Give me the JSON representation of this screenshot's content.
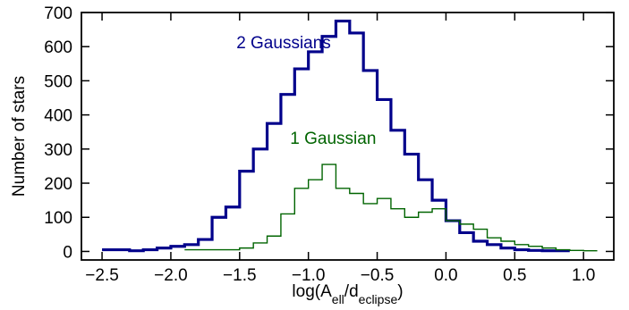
{
  "chart_data": {
    "type": "line",
    "title": "",
    "xlabel": "log(A_ell/d_eclipse)",
    "ylabel": "Number of stars",
    "xlim": [
      -2.65,
      1.22
    ],
    "ylim": [
      -25,
      700
    ],
    "x_ticks": [
      -2.5,
      -2.0,
      -1.5,
      -1.0,
      -0.5,
      0.0,
      0.5,
      1.0
    ],
    "x_tick_labels": [
      "−2.5",
      "−2.0",
      "−1.5",
      "−1.0",
      "−0.5",
      "0.0",
      "0.5",
      "1.0"
    ],
    "y_ticks": [
      0,
      100,
      200,
      300,
      400,
      500,
      600,
      700
    ],
    "y_tick_labels": [
      "0",
      "100",
      "200",
      "300",
      "400",
      "500",
      "600",
      "700"
    ],
    "grid": false,
    "bin_width": 0.1,
    "series": [
      {
        "name": "2 Gaussians",
        "color": "#00008b",
        "bin_edges": [
          -2.5,
          -2.4,
          -2.3,
          -2.2,
          -2.1,
          -2.0,
          -1.9,
          -1.8,
          -1.7,
          -1.6,
          -1.5,
          -1.4,
          -1.3,
          -1.2,
          -1.1,
          -1.0,
          -0.9,
          -0.8,
          -0.7,
          -0.6,
          -0.5,
          -0.4,
          -0.3,
          -0.2,
          -0.1,
          0.0,
          0.1,
          0.2,
          0.3,
          0.4,
          0.5,
          0.6,
          0.7,
          0.8,
          0.9
        ],
        "counts": [
          5,
          5,
          2,
          5,
          10,
          15,
          20,
          35,
          100,
          130,
          235,
          300,
          375,
          460,
          535,
          585,
          630,
          675,
          640,
          530,
          445,
          355,
          285,
          210,
          150,
          90,
          55,
          30,
          20,
          10,
          5,
          3,
          2,
          2
        ]
      },
      {
        "name": "1 Gaussian",
        "color": "#006400",
        "bin_edges": [
          -1.9,
          -1.8,
          -1.7,
          -1.6,
          -1.5,
          -1.4,
          -1.3,
          -1.2,
          -1.1,
          -1.0,
          -0.9,
          -0.8,
          -0.7,
          -0.6,
          -0.5,
          -0.4,
          -0.3,
          -0.2,
          -0.1,
          0.0,
          0.1,
          0.2,
          0.3,
          0.4,
          0.5,
          0.6,
          0.7,
          0.8,
          0.9,
          1.0,
          1.1
        ],
        "counts": [
          5,
          5,
          5,
          5,
          10,
          25,
          45,
          110,
          185,
          210,
          255,
          185,
          170,
          140,
          155,
          125,
          100,
          115,
          125,
          90,
          80,
          65,
          40,
          30,
          20,
          15,
          10,
          5,
          3,
          2
        ]
      }
    ],
    "annotations": [
      {
        "text": "2 Gaussians",
        "x": -1.18,
        "y": 595,
        "color": "#00008b"
      },
      {
        "text": "1 Gaussian",
        "x": -0.82,
        "y": 315,
        "color": "#006400"
      }
    ]
  }
}
